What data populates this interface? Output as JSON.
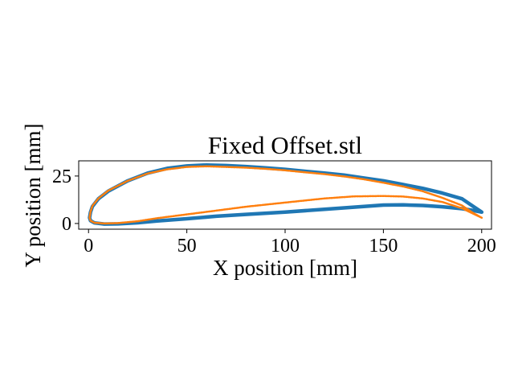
{
  "chart_data": {
    "type": "scatter",
    "title": "Fixed Offset.stl",
    "xlabel": "X position [mm]",
    "ylabel": "Y position [mm]",
    "xlim": [
      -5,
      205
    ],
    "ylim": [
      -3,
      33
    ],
    "xticks": [
      0,
      50,
      100,
      150,
      200
    ],
    "yticks": [
      0,
      25
    ],
    "grid": false,
    "legend": "none",
    "series": [
      {
        "color": "#1f77b4",
        "upper": [
          [
            200,
            6
          ],
          [
            195,
            9.5
          ],
          [
            190,
            13
          ],
          [
            180,
            16
          ],
          [
            170,
            18.5
          ],
          [
            160,
            20.5
          ],
          [
            150,
            22.5
          ],
          [
            140,
            24
          ],
          [
            130,
            25.5
          ],
          [
            120,
            26.5
          ],
          [
            110,
            27.5
          ],
          [
            100,
            28.5
          ],
          [
            90,
            29.3
          ],
          [
            80,
            30
          ],
          [
            70,
            30.5
          ],
          [
            60,
            30.8
          ],
          [
            50,
            30.3
          ],
          [
            40,
            29
          ],
          [
            30,
            26.5
          ],
          [
            20,
            22.5
          ],
          [
            10,
            17
          ],
          [
            5,
            13
          ],
          [
            2,
            9
          ],
          [
            1,
            6
          ],
          [
            0.5,
            3
          ]
        ],
        "lower": [
          [
            0.5,
            3
          ],
          [
            1,
            1.5
          ],
          [
            3,
            0.3
          ],
          [
            8,
            -0.3
          ],
          [
            15,
            -0.2
          ],
          [
            25,
            0.4
          ],
          [
            35,
            1.3
          ],
          [
            50,
            2.5
          ],
          [
            65,
            3.8
          ],
          [
            80,
            4.8
          ],
          [
            100,
            6
          ],
          [
            120,
            7.5
          ],
          [
            140,
            9
          ],
          [
            150,
            9.7
          ],
          [
            160,
            9.8
          ],
          [
            170,
            9.5
          ],
          [
            180,
            8.8
          ],
          [
            190,
            7.8
          ],
          [
            195,
            7
          ],
          [
            200,
            6
          ]
        ]
      },
      {
        "color": "#ff7f0e",
        "upper": [
          [
            200,
            3
          ],
          [
            195,
            6
          ],
          [
            190,
            9.5
          ],
          [
            180,
            13.5
          ],
          [
            170,
            17
          ],
          [
            160,
            19.5
          ],
          [
            150,
            21.5
          ],
          [
            140,
            23.3
          ],
          [
            130,
            24.8
          ],
          [
            120,
            26
          ],
          [
            110,
            27
          ],
          [
            100,
            28
          ],
          [
            90,
            28.8
          ],
          [
            80,
            29.4
          ],
          [
            70,
            29.8
          ],
          [
            60,
            30.1
          ],
          [
            50,
            29.8
          ],
          [
            40,
            28.5
          ],
          [
            30,
            26.3
          ],
          [
            20,
            22.5
          ],
          [
            10,
            17.3
          ],
          [
            5,
            13.2
          ],
          [
            2,
            9.3
          ],
          [
            1,
            6.2
          ],
          [
            0.5,
            3
          ]
        ],
        "lower": [
          [
            0.5,
            3
          ],
          [
            1,
            1.5
          ],
          [
            3,
            0.4
          ],
          [
            8,
            0
          ],
          [
            15,
            0.2
          ],
          [
            25,
            1.2
          ],
          [
            35,
            2.8
          ],
          [
            50,
            4.8
          ],
          [
            65,
            6.8
          ],
          [
            80,
            8.8
          ],
          [
            100,
            11
          ],
          [
            120,
            13.2
          ],
          [
            135,
            14.3
          ],
          [
            150,
            14.5
          ],
          [
            160,
            14.2
          ],
          [
            170,
            13.2
          ],
          [
            180,
            11.3
          ],
          [
            190,
            8
          ],
          [
            195,
            5.5
          ],
          [
            200,
            3
          ]
        ]
      }
    ]
  }
}
